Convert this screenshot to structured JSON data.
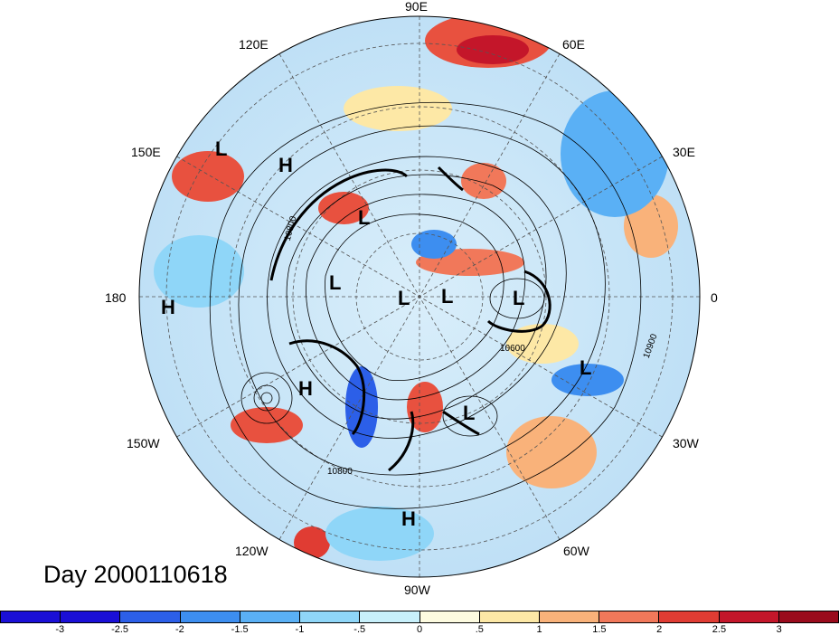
{
  "title": "Day 2000110618",
  "longitude_labels": {
    "n90e": "90E",
    "n60e": "60E",
    "n30e": "30E",
    "n0": "0",
    "n30w": "30W",
    "n60w": "60W",
    "n90w": "90W",
    "n120w": "120W",
    "n150w": "150W",
    "n180": "180",
    "n150e": "150E",
    "n120e": "120E"
  },
  "pressure_systems": [
    {
      "type": "L"
    },
    {
      "type": "H"
    },
    {
      "type": "L"
    },
    {
      "type": "L"
    },
    {
      "type": "L"
    },
    {
      "type": "L"
    },
    {
      "type": "L"
    },
    {
      "type": "H"
    },
    {
      "type": "H"
    },
    {
      "type": "L"
    },
    {
      "type": "L"
    },
    {
      "type": "H"
    }
  ],
  "contour_labels": [
    "10800",
    "10600",
    "10800",
    "10900"
  ],
  "colorbar": {
    "colors": [
      "#1a0fd6",
      "#2c5fe8",
      "#3d8ef0",
      "#5ab0f5",
      "#8fd6f8",
      "#c8f0fb",
      "#fdfbe0",
      "#fde8a6",
      "#f9b27a",
      "#f1785a",
      "#e03c33",
      "#c4162a",
      "#9a0b1c"
    ],
    "ticks": [
      "-3",
      "-2.5",
      "-2",
      "-1.5",
      "-1",
      "-.5",
      "0",
      ".5",
      "1",
      "1.5",
      "2",
      "2.5",
      "3"
    ]
  }
}
